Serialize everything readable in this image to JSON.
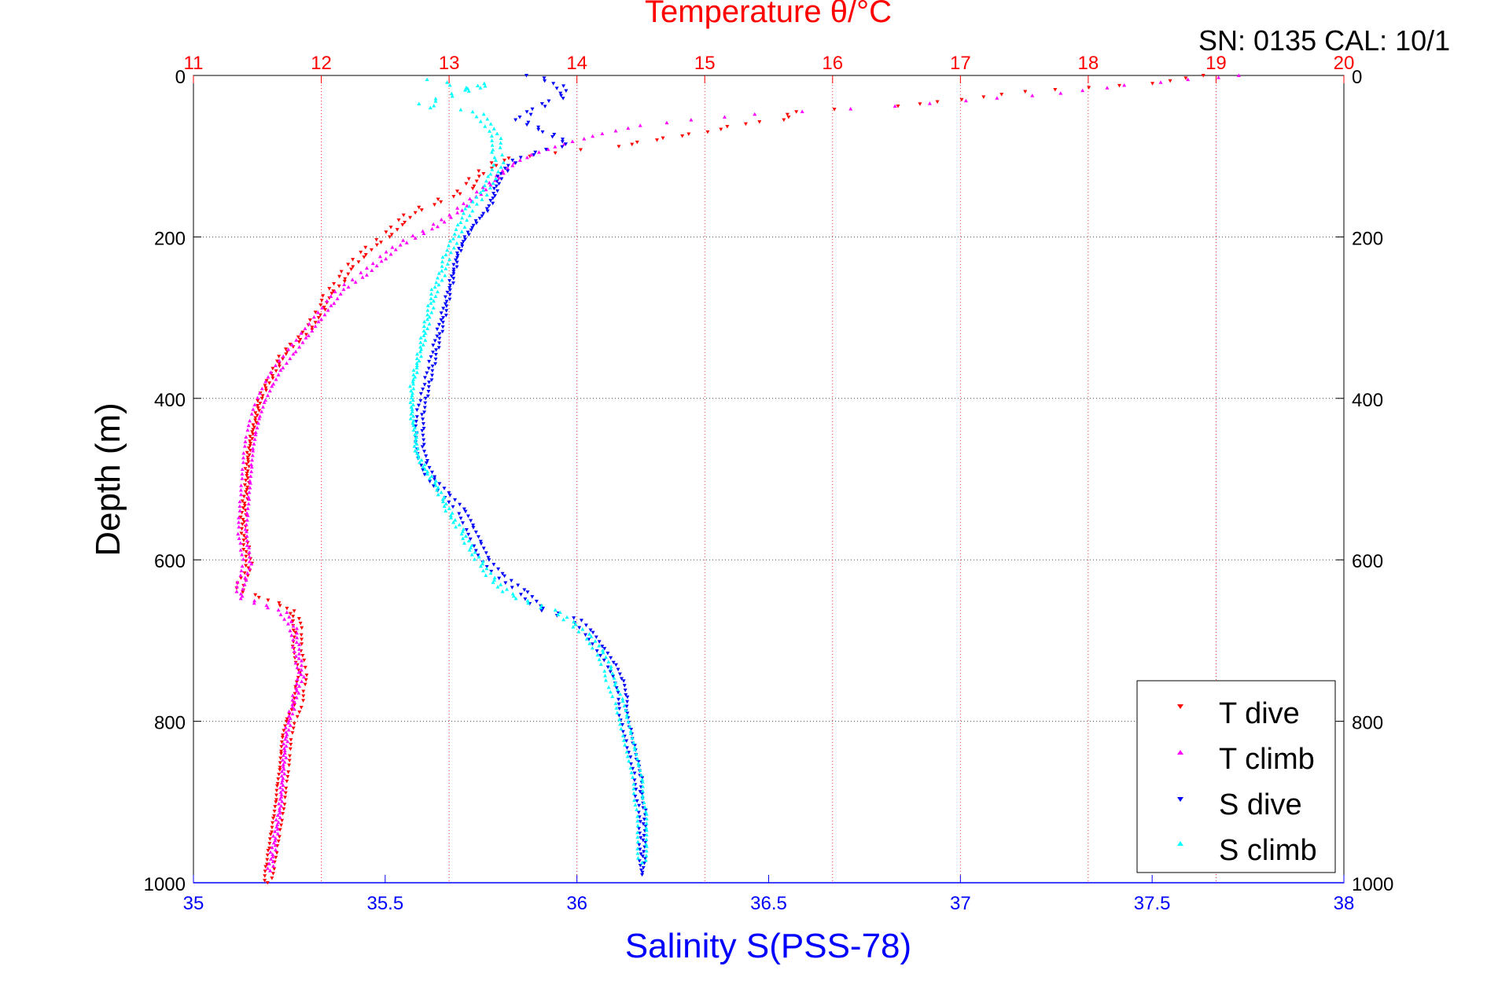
{
  "chart_data": {
    "type": "scatter",
    "title_top": "Temperature θ/°C",
    "header_text": "SN: 0135  CAL: 10/1",
    "xlabel_bottom": "Salinity S(PSS-78)",
    "ylabel": "Depth (m)",
    "x_bottom": {
      "label": "Salinity S(PSS-78)",
      "range": [
        35,
        38
      ],
      "ticks": [
        "35",
        "35.5",
        "36",
        "36.5",
        "37",
        "37.5",
        "38"
      ],
      "color": "#0000ff"
    },
    "x_top": {
      "label": "Temperature θ/°C",
      "range": [
        11,
        20
      ],
      "ticks": [
        "11",
        "12",
        "13",
        "14",
        "15",
        "16",
        "17",
        "18",
        "19",
        "20"
      ],
      "color": "#ff0000"
    },
    "y": {
      "label": "Depth (m)",
      "range": [
        0,
        1000
      ],
      "reversed": true,
      "ticks": [
        "0",
        "200",
        "400",
        "600",
        "800",
        "1000"
      ]
    },
    "grid": true,
    "legend_position": "bottom-right",
    "series": [
      {
        "name": "T dive",
        "axis": "temperature",
        "color": "#ff0000",
        "marker": "triangle-down",
        "points": [
          [
            18.9,
            0
          ],
          [
            18.5,
            10
          ],
          [
            18.0,
            15
          ],
          [
            17.5,
            20
          ],
          [
            17.0,
            30
          ],
          [
            16.5,
            38
          ],
          [
            16.0,
            42
          ],
          [
            15.7,
            45
          ],
          [
            15.6,
            55
          ],
          [
            15.3,
            60
          ],
          [
            15.0,
            70
          ],
          [
            14.8,
            75
          ],
          [
            14.6,
            80
          ],
          [
            14.3,
            88
          ],
          [
            14.0,
            92
          ],
          [
            13.8,
            96
          ],
          [
            13.6,
            100
          ],
          [
            13.4,
            105
          ],
          [
            13.3,
            115
          ],
          [
            13.2,
            125
          ],
          [
            13.15,
            140
          ],
          [
            13.0,
            150
          ],
          [
            12.85,
            160
          ],
          [
            12.7,
            170
          ],
          [
            12.6,
            185
          ],
          [
            12.5,
            200
          ],
          [
            12.4,
            210
          ],
          [
            12.3,
            225
          ],
          [
            12.2,
            240
          ],
          [
            12.15,
            255
          ],
          [
            12.05,
            270
          ],
          [
            12.0,
            290
          ],
          [
            11.95,
            300
          ],
          [
            11.9,
            315
          ],
          [
            11.8,
            330
          ],
          [
            11.7,
            345
          ],
          [
            11.65,
            360
          ],
          [
            11.6,
            375
          ],
          [
            11.55,
            390
          ],
          [
            11.52,
            400
          ],
          [
            11.5,
            415
          ],
          [
            11.48,
            430
          ],
          [
            11.45,
            450
          ],
          [
            11.43,
            470
          ],
          [
            11.42,
            490
          ],
          [
            11.42,
            510
          ],
          [
            11.4,
            530
          ],
          [
            11.39,
            550
          ],
          [
            11.4,
            570
          ],
          [
            11.42,
            590
          ],
          [
            11.44,
            610
          ],
          [
            11.35,
            635
          ],
          [
            11.4,
            640
          ],
          [
            11.6,
            650
          ],
          [
            11.75,
            660
          ],
          [
            11.8,
            670
          ],
          [
            11.82,
            690
          ],
          [
            11.81,
            710
          ],
          [
            11.84,
            730
          ],
          [
            11.86,
            740
          ],
          [
            11.83,
            760
          ],
          [
            11.82,
            780
          ],
          [
            11.76,
            800
          ],
          [
            11.73,
            820
          ],
          [
            11.72,
            840
          ],
          [
            11.71,
            860
          ],
          [
            11.69,
            880
          ],
          [
            11.68,
            900
          ],
          [
            11.66,
            920
          ],
          [
            11.64,
            940
          ],
          [
            11.62,
            960
          ],
          [
            11.6,
            980
          ],
          [
            11.58,
            1000
          ]
        ]
      },
      {
        "name": "T climb",
        "axis": "temperature",
        "color": "#ff00ff",
        "marker": "triangle-up",
        "points": [
          [
            19.2,
            0
          ],
          [
            18.8,
            5
          ],
          [
            18.3,
            12
          ],
          [
            17.8,
            22
          ],
          [
            17.3,
            28
          ],
          [
            16.5,
            38
          ],
          [
            15.4,
            48
          ],
          [
            14.9,
            55
          ],
          [
            14.5,
            62
          ],
          [
            14.2,
            72
          ],
          [
            13.9,
            85
          ],
          [
            13.7,
            95
          ],
          [
            13.55,
            105
          ],
          [
            13.45,
            115
          ],
          [
            13.35,
            130
          ],
          [
            13.2,
            150
          ],
          [
            13.05,
            170
          ],
          [
            12.85,
            190
          ],
          [
            12.6,
            210
          ],
          [
            12.45,
            230
          ],
          [
            12.3,
            250
          ],
          [
            12.15,
            265
          ],
          [
            12.05,
            285
          ],
          [
            11.95,
            305
          ],
          [
            11.85,
            325
          ],
          [
            11.75,
            345
          ],
          [
            11.65,
            365
          ],
          [
            11.58,
            385
          ],
          [
            11.52,
            405
          ],
          [
            11.48,
            425
          ],
          [
            11.45,
            445
          ],
          [
            11.43,
            465
          ],
          [
            11.42,
            485
          ],
          [
            11.41,
            505
          ],
          [
            11.4,
            525
          ],
          [
            11.39,
            545
          ],
          [
            11.38,
            565
          ],
          [
            11.4,
            585
          ],
          [
            11.42,
            605
          ],
          [
            11.38,
            625
          ],
          [
            11.35,
            645
          ],
          [
            11.7,
            665
          ],
          [
            11.78,
            685
          ],
          [
            11.8,
            705
          ],
          [
            11.82,
            725
          ],
          [
            11.84,
            745
          ],
          [
            11.8,
            765
          ],
          [
            11.77,
            785
          ],
          [
            11.74,
            805
          ],
          [
            11.72,
            825
          ],
          [
            11.71,
            845
          ],
          [
            11.7,
            865
          ],
          [
            11.69,
            885
          ],
          [
            11.68,
            905
          ],
          [
            11.66,
            925
          ],
          [
            11.64,
            945
          ],
          [
            11.62,
            965
          ],
          [
            11.6,
            985
          ]
        ]
      },
      {
        "name": "S dive",
        "axis": "salinity",
        "color": "#0000ff",
        "marker": "triangle-down",
        "points": [
          [
            35.88,
            0
          ],
          [
            35.95,
            10
          ],
          [
            35.97,
            25
          ],
          [
            35.92,
            35
          ],
          [
            35.88,
            45
          ],
          [
            35.85,
            55
          ],
          [
            35.92,
            70
          ],
          [
            35.98,
            85
          ],
          [
            35.9,
            95
          ],
          [
            35.84,
            105
          ],
          [
            35.82,
            115
          ],
          [
            35.8,
            125
          ],
          [
            35.79,
            140
          ],
          [
            35.78,
            155
          ],
          [
            35.77,
            165
          ],
          [
            35.74,
            180
          ],
          [
            35.71,
            200
          ],
          [
            35.69,
            220
          ],
          [
            35.68,
            240
          ],
          [
            35.67,
            260
          ],
          [
            35.66,
            280
          ],
          [
            35.65,
            300
          ],
          [
            35.64,
            320
          ],
          [
            35.63,
            340
          ],
          [
            35.62,
            360
          ],
          [
            35.61,
            380
          ],
          [
            35.6,
            400
          ],
          [
            35.59,
            420
          ],
          [
            35.59,
            440
          ],
          [
            35.59,
            460
          ],
          [
            35.6,
            480
          ],
          [
            35.62,
            500
          ],
          [
            35.66,
            520
          ],
          [
            35.7,
            540
          ],
          [
            35.72,
            560
          ],
          [
            35.74,
            580
          ],
          [
            35.76,
            600
          ],
          [
            35.8,
            620
          ],
          [
            35.86,
            640
          ],
          [
            35.9,
            660
          ],
          [
            36.0,
            675
          ],
          [
            36.03,
            690
          ],
          [
            36.06,
            710
          ],
          [
            36.09,
            730
          ],
          [
            36.11,
            750
          ],
          [
            36.12,
            770
          ],
          [
            36.12,
            790
          ],
          [
            36.13,
            810
          ],
          [
            36.14,
            830
          ],
          [
            36.15,
            850
          ],
          [
            36.16,
            870
          ],
          [
            36.16,
            890
          ],
          [
            36.17,
            910
          ],
          [
            36.17,
            930
          ],
          [
            36.17,
            950
          ],
          [
            36.17,
            970
          ],
          [
            36.17,
            990
          ]
        ]
      },
      {
        "name": "S climb",
        "axis": "salinity",
        "color": "#00ffff",
        "marker": "triangle-up",
        "points": [
          [
            35.62,
            5
          ],
          [
            35.68,
            12
          ],
          [
            35.72,
            18
          ],
          [
            35.77,
            10
          ],
          [
            35.6,
            35
          ],
          [
            35.63,
            40
          ],
          [
            35.74,
            45
          ],
          [
            35.79,
            75
          ],
          [
            35.79,
            95
          ],
          [
            35.8,
            105
          ],
          [
            35.78,
            125
          ],
          [
            35.76,
            145
          ],
          [
            35.72,
            165
          ],
          [
            35.7,
            185
          ],
          [
            35.68,
            205
          ],
          [
            35.66,
            225
          ],
          [
            35.65,
            245
          ],
          [
            35.63,
            265
          ],
          [
            35.62,
            285
          ],
          [
            35.61,
            305
          ],
          [
            35.6,
            325
          ],
          [
            35.59,
            345
          ],
          [
            35.58,
            365
          ],
          [
            35.57,
            385
          ],
          [
            35.57,
            405
          ],
          [
            35.57,
            425
          ],
          [
            35.58,
            445
          ],
          [
            35.58,
            465
          ],
          [
            35.6,
            485
          ],
          [
            35.63,
            505
          ],
          [
            35.65,
            525
          ],
          [
            35.67,
            545
          ],
          [
            35.7,
            565
          ],
          [
            35.72,
            585
          ],
          [
            35.75,
            605
          ],
          [
            35.78,
            625
          ],
          [
            35.83,
            645
          ],
          [
            35.95,
            665
          ],
          [
            35.99,
            680
          ],
          [
            36.03,
            695
          ],
          [
            36.06,
            715
          ],
          [
            36.08,
            735
          ],
          [
            36.09,
            755
          ],
          [
            36.11,
            775
          ],
          [
            36.12,
            795
          ],
          [
            36.13,
            815
          ],
          [
            36.14,
            835
          ],
          [
            36.15,
            855
          ],
          [
            36.16,
            875
          ],
          [
            36.16,
            895
          ],
          [
            36.17,
            915
          ],
          [
            36.17,
            935
          ],
          [
            36.17,
            955
          ],
          [
            36.17,
            975
          ]
        ]
      }
    ]
  }
}
